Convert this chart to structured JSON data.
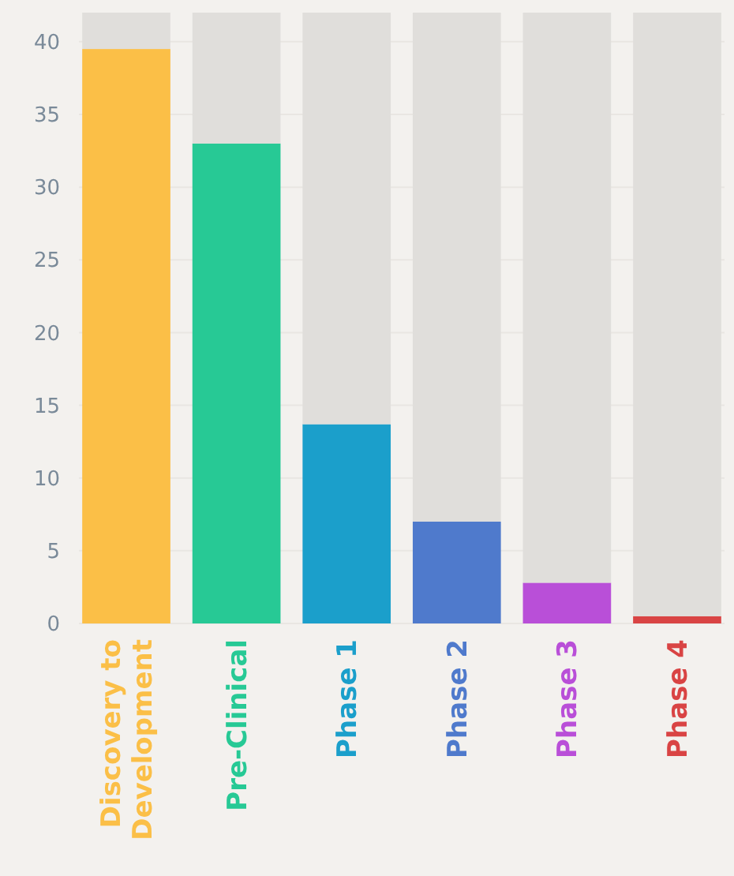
{
  "chart_data": {
    "type": "bar",
    "stacked": true,
    "categories": [
      "Discovery to Development",
      "Pre-Clinical",
      "Phase 1",
      "Phase 2",
      "Phase 3",
      "Phase 4"
    ],
    "series": [
      {
        "colors": [
          "#fbbf47",
          "#27c995",
          "#1b9fcb",
          "#4f7acc",
          "#b94fd8",
          "#d94444"
        ],
        "values": [
          39.5,
          33,
          13.7,
          7,
          2.8,
          0.5
        ]
      },
      {
        "color": "#e0dedb",
        "values": [
          2.5,
          9,
          28.3,
          35,
          39.2,
          41.5
        ]
      }
    ],
    "ylim": [
      0,
      42
    ],
    "yticks": [
      0,
      5,
      10,
      15,
      20,
      25,
      30,
      35,
      40
    ],
    "grid": "y"
  }
}
